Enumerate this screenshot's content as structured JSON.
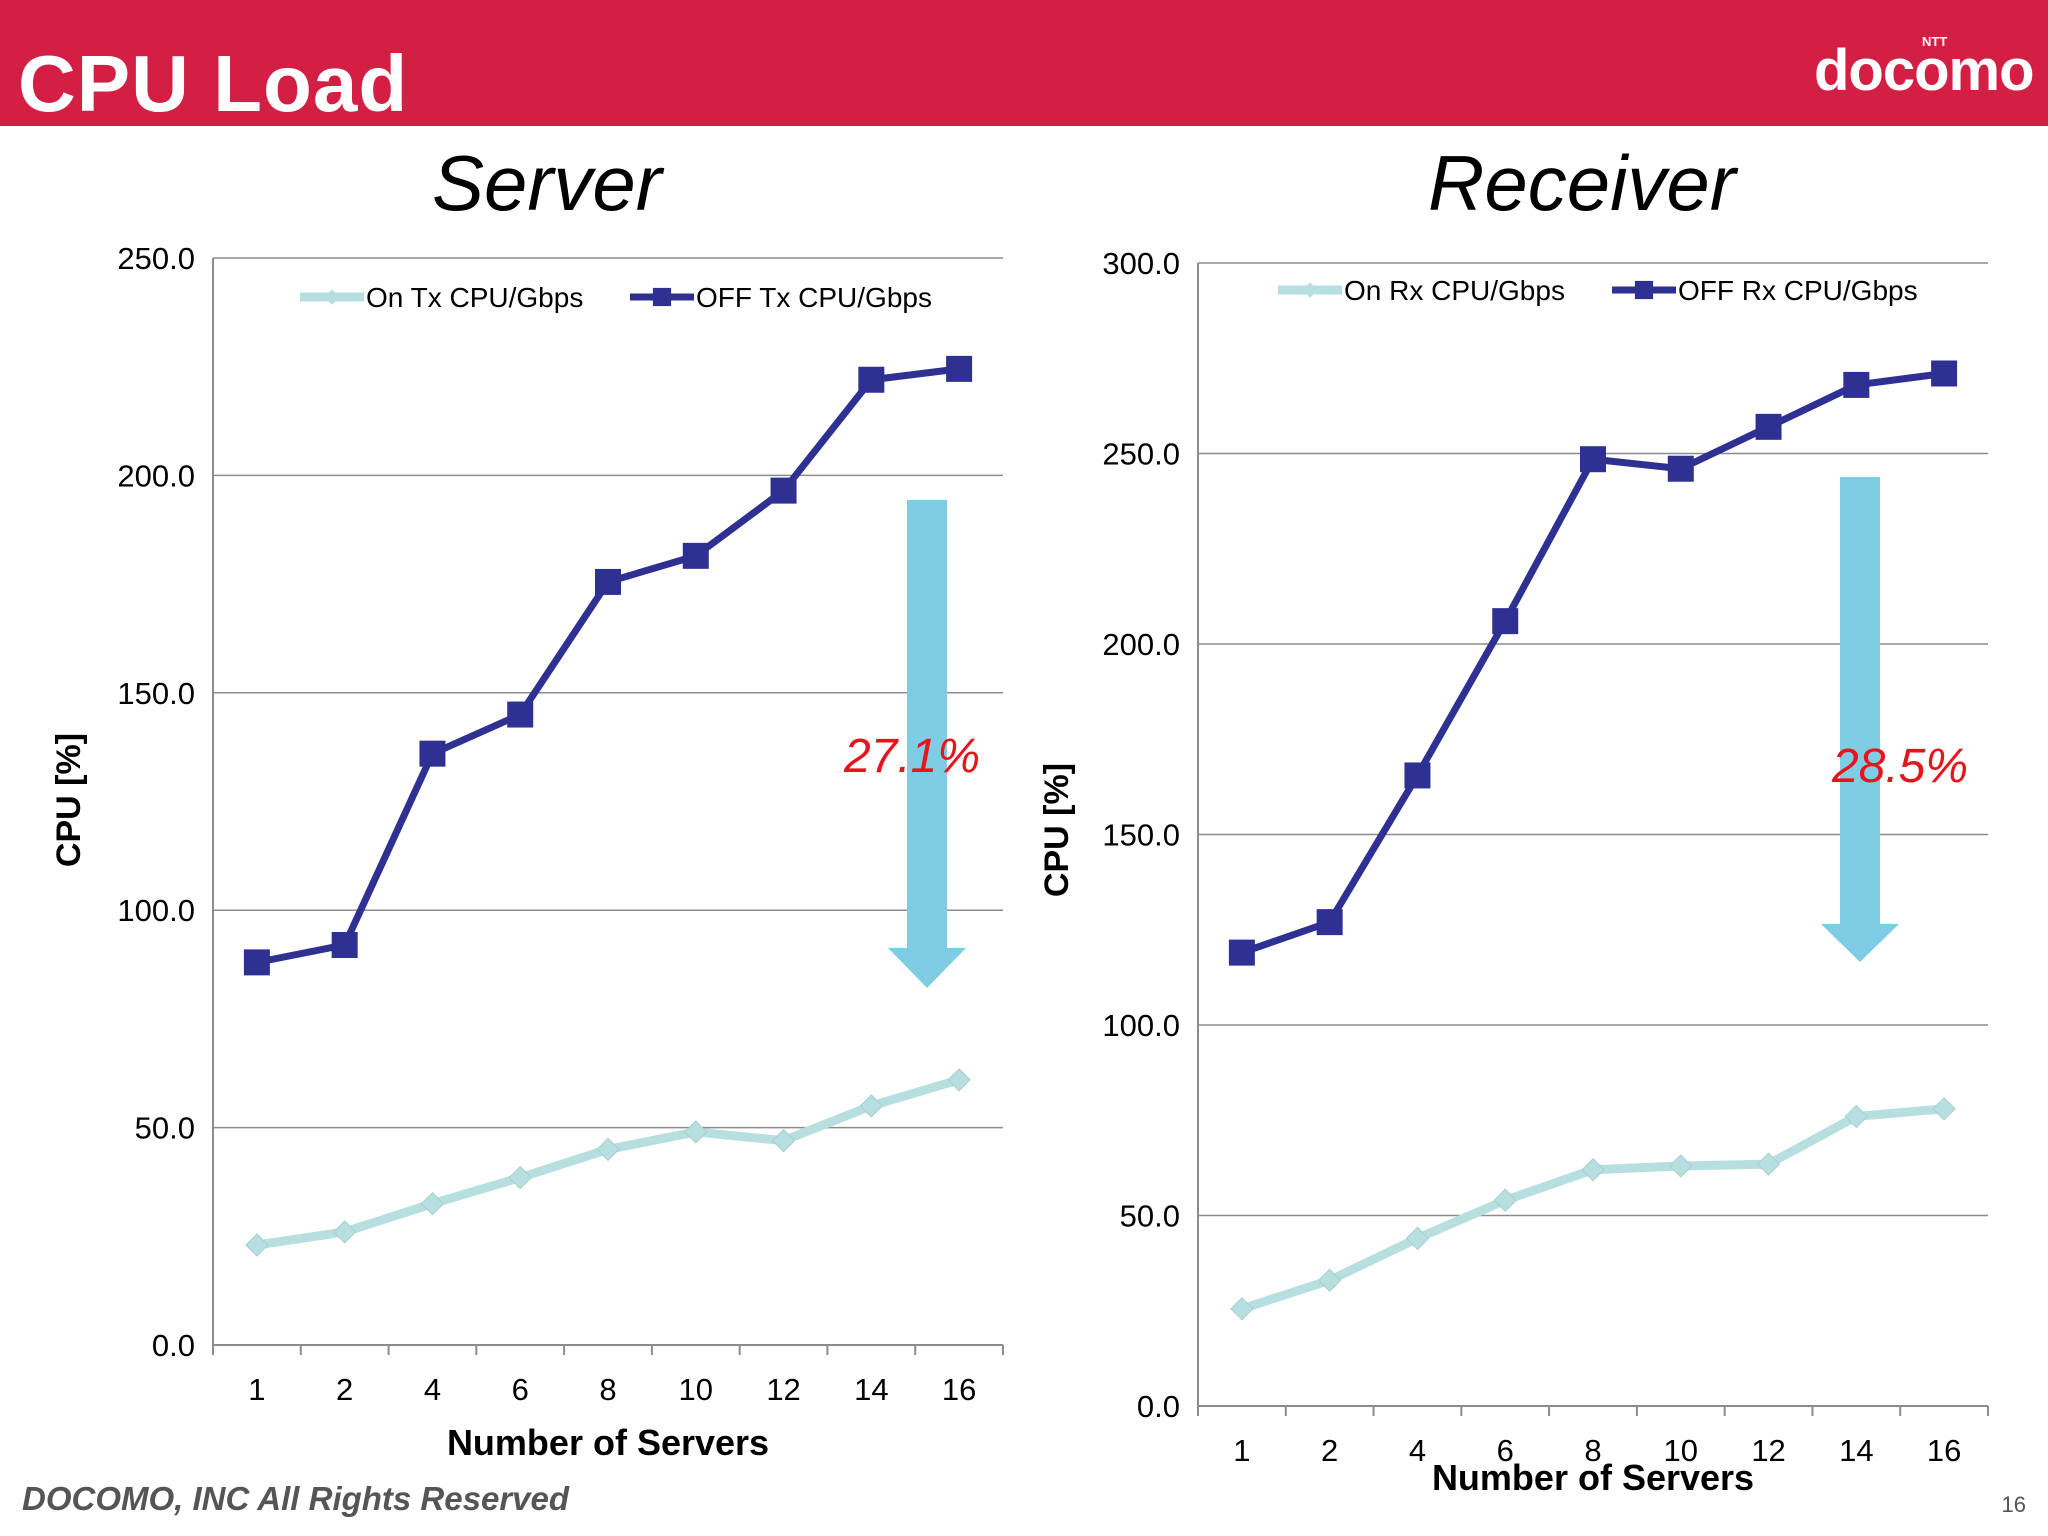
{
  "header": {
    "title": "CPU Load",
    "logo_text": "docomo",
    "logo_superscript": "NTT"
  },
  "footer": {
    "copyright": "DOCOMO, INC All Rights Reserved",
    "page_number": "16"
  },
  "colors": {
    "header_bg": "#d41f44",
    "on_series": "#b8dfe0",
    "off_series": "#2e3192",
    "arrow": "#7fcde4",
    "annotation": "#e8141c"
  },
  "chart_data": [
    {
      "type": "line",
      "title": "Server",
      "categories": [
        "1",
        "2",
        "4",
        "6",
        "8",
        "10",
        "12",
        "14",
        "16"
      ],
      "series": [
        {
          "name": "On Tx CPU/Gbps",
          "values": [
            23,
            26,
            32.5,
            38.5,
            45,
            49,
            47,
            55,
            61
          ]
        },
        {
          "name": "OFF Tx CPU/Gbps",
          "values": [
            88,
            92,
            136,
            145,
            175.5,
            181.5,
            196.5,
            222,
            224.5
          ]
        }
      ],
      "xlabel": "Number of Servers",
      "ylabel": "CPU [%]",
      "ylim": [
        0,
        250
      ],
      "yticks": [
        "0.0",
        "50.0",
        "100.0",
        "150.0",
        "200.0",
        "250.0"
      ],
      "grid": true,
      "legend": "top",
      "annotation": "27.1%"
    },
    {
      "type": "line",
      "title": "Receiver",
      "categories": [
        "1",
        "2",
        "4",
        "6",
        "8",
        "10",
        "12",
        "14",
        "16"
      ],
      "series": [
        {
          "name": "On Rx CPU/Gbps",
          "values": [
            25.5,
            33,
            44,
            54,
            62,
            63,
            63.5,
            76,
            78
          ]
        },
        {
          "name": "OFF Rx CPU/Gbps",
          "values": [
            119,
            127,
            165.5,
            206,
            248.5,
            246,
            257,
            268,
            271
          ]
        }
      ],
      "xlabel": "Number of Servers",
      "ylabel": "CPU [%]",
      "ylim": [
        0,
        300
      ],
      "yticks": [
        "0.0",
        "50.0",
        "100.0",
        "150.0",
        "200.0",
        "250.0",
        "300.0"
      ],
      "grid": true,
      "legend": "top",
      "annotation": "28.5%"
    }
  ]
}
